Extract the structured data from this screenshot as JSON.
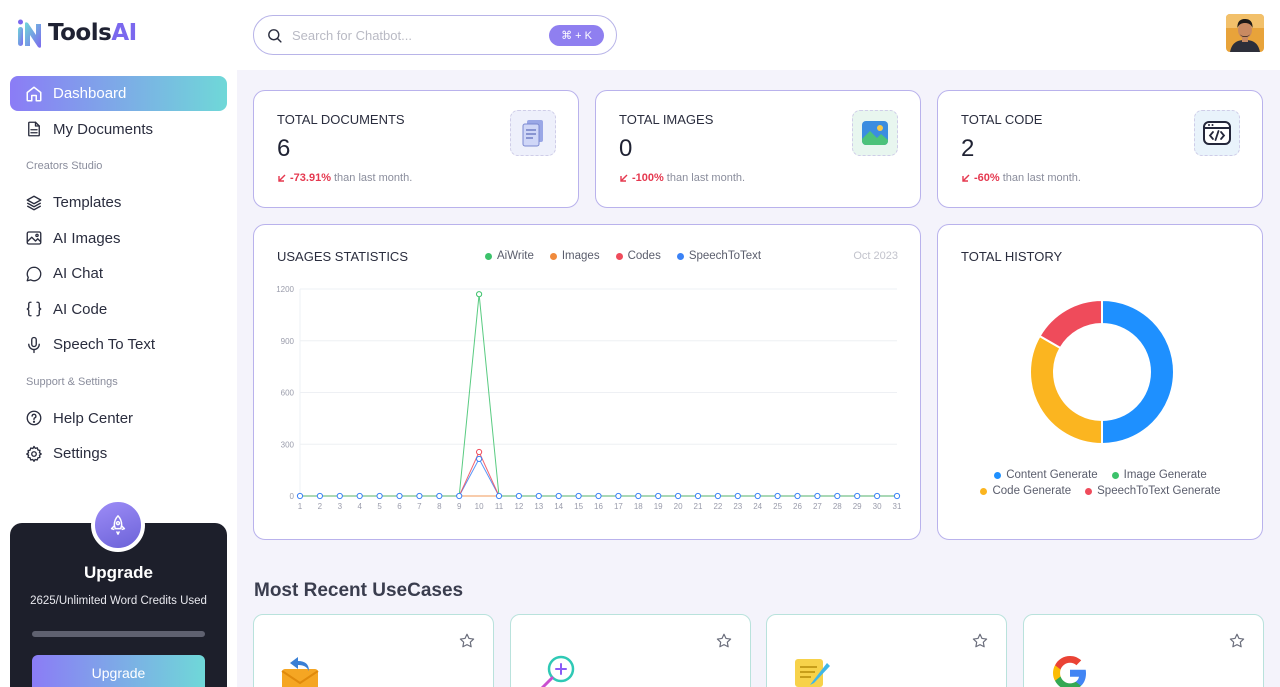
{
  "brand": {
    "name_main": "Tools",
    "name_accent": "AI"
  },
  "sidebar": {
    "items": [
      {
        "label": "Dashboard",
        "icon": "home-icon",
        "active": true
      },
      {
        "label": "My Documents",
        "icon": "document-icon"
      }
    ],
    "section_creators": "Creators Studio",
    "creators_items": [
      {
        "label": "Templates",
        "icon": "layers-icon"
      },
      {
        "label": "AI Images",
        "icon": "image-icon"
      },
      {
        "label": "AI Chat",
        "icon": "chat-bubble-icon"
      },
      {
        "label": "AI Code",
        "icon": "braces-icon"
      },
      {
        "label": "Speech To Text",
        "icon": "microphone-icon"
      }
    ],
    "section_support": "Support & Settings",
    "support_items": [
      {
        "label": "Help Center",
        "icon": "help-circle-icon"
      },
      {
        "label": "Settings",
        "icon": "gear-icon"
      }
    ]
  },
  "upgrade": {
    "title": "Upgrade",
    "credits": "2625/Unlimited Word Credits Used",
    "button": "Upgrade"
  },
  "header": {
    "search_placeholder": "Search for Chatbot...",
    "shortcut": "⌘ + K"
  },
  "stats": [
    {
      "label": "TOTAL DOCUMENTS",
      "value": "6",
      "change": "-73.91%",
      "suffix": "than last month.",
      "icon": "documents-icon"
    },
    {
      "label": "TOTAL IMAGES",
      "value": "0",
      "change": "-100%",
      "suffix": "than last month.",
      "icon": "picture-icon"
    },
    {
      "label": "TOTAL CODE",
      "value": "2",
      "change": "-60%",
      "suffix": "than last month.",
      "icon": "code-window-icon"
    }
  ],
  "usage": {
    "title": "USAGES STATISTICS",
    "date": "Oct 2023",
    "colors": {
      "AiWrite": "#3cc26b",
      "Images": "#f08a3c",
      "Codes": "#ef4b5b",
      "SpeechToText": "#3b82f6"
    }
  },
  "history": {
    "title": "TOTAL HISTORY"
  },
  "recent": {
    "title": "Most Recent UseCases"
  },
  "chart_data": [
    {
      "type": "line",
      "title": "USAGES STATISTICS",
      "x": [
        1,
        2,
        3,
        4,
        5,
        6,
        7,
        8,
        9,
        10,
        11,
        12,
        13,
        14,
        15,
        16,
        17,
        18,
        19,
        20,
        21,
        22,
        23,
        24,
        25,
        26,
        27,
        28,
        29,
        30,
        31
      ],
      "y_ticks": [
        0,
        300,
        600,
        900,
        1200
      ],
      "ylim": [
        0,
        1200
      ],
      "legend_position": "top",
      "grid": true,
      "series": [
        {
          "name": "AiWrite",
          "color": "#3cc26b",
          "values": [
            0,
            0,
            0,
            0,
            0,
            0,
            0,
            0,
            0,
            1170,
            0,
            0,
            0,
            0,
            0,
            0,
            0,
            0,
            0,
            0,
            0,
            0,
            0,
            0,
            0,
            0,
            0,
            0,
            0,
            0,
            0
          ]
        },
        {
          "name": "Images",
          "color": "#f08a3c",
          "values": [
            0,
            0,
            0,
            0,
            0,
            0,
            0,
            0,
            0,
            0,
            0,
            0,
            0,
            0,
            0,
            0,
            0,
            0,
            0,
            0,
            0,
            0,
            0,
            0,
            0,
            0,
            0,
            0,
            0,
            0,
            0
          ]
        },
        {
          "name": "Codes",
          "color": "#ef4b5b",
          "values": [
            0,
            0,
            0,
            0,
            0,
            0,
            0,
            0,
            0,
            255,
            0,
            0,
            0,
            0,
            0,
            0,
            0,
            0,
            0,
            0,
            0,
            0,
            0,
            0,
            0,
            0,
            0,
            0,
            0,
            0,
            0
          ]
        },
        {
          "name": "SpeechToText",
          "color": "#3b82f6",
          "values": [
            0,
            0,
            0,
            0,
            0,
            0,
            0,
            0,
            0,
            215,
            0,
            0,
            0,
            0,
            0,
            0,
            0,
            0,
            0,
            0,
            0,
            0,
            0,
            0,
            0,
            0,
            0,
            0,
            0,
            0,
            0
          ]
        }
      ]
    },
    {
      "type": "pie",
      "title": "TOTAL HISTORY",
      "donut": true,
      "legend_position": "bottom",
      "categories": [
        "Content Generate",
        "Image Generate",
        "Code Generate",
        "SpeechToText Generate"
      ],
      "values": [
        6,
        0,
        4,
        2
      ],
      "colors": [
        "#1e90ff",
        "#3cc26b",
        "#fbb520",
        "#ef4b5b"
      ]
    }
  ]
}
